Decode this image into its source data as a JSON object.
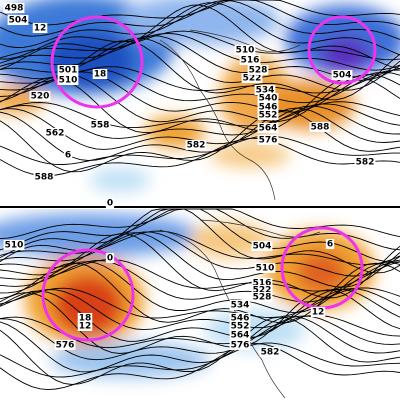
{
  "panels": [
    {
      "labels": [
        "498",
        "504",
        "12",
        "501",
        "510",
        "18",
        "520",
        "562",
        "558",
        "6",
        "588",
        "510",
        "516",
        "522",
        "528",
        "534",
        "540",
        "546",
        "552",
        "564",
        "576",
        "582",
        "504",
        "588",
        "582",
        "0"
      ]
    },
    {
      "labels": [
        "510",
        "504",
        "510",
        "516",
        "522",
        "528",
        "534",
        "546",
        "552",
        "564",
        "576",
        "582",
        "576",
        "18",
        "12",
        "6",
        "0",
        "12"
      ]
    }
  ]
}
